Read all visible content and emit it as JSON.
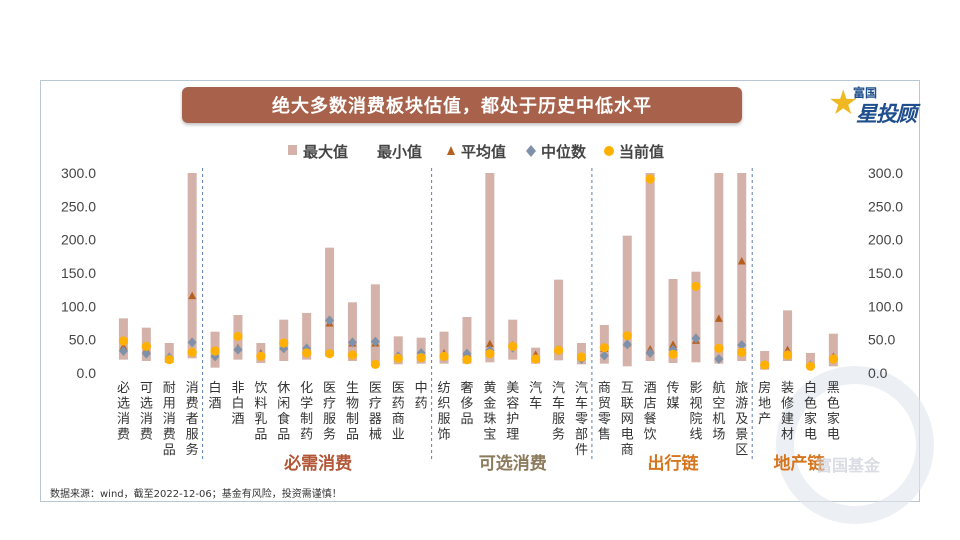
{
  "title": "绝大多数消费板块估值，都处于历史中低水平",
  "logo": {
    "top": "富国",
    "main": "星投顾"
  },
  "footnote": "数据来源：wind，截至2022-12-06；基金有风险，投资需谨慎！",
  "watermark": "富国基金",
  "colors": {
    "max_bar": "#d4b2aa",
    "avg": "#b5601e",
    "median": "#7f91a8",
    "current": "#ffb000",
    "title_bg": "#a8624b",
    "group_necessity": "#b25637",
    "group_optional": "#8c7a5c",
    "group_travel": "#d5761e",
    "group_property": "#d5761e",
    "divider": "#5b7fb5"
  },
  "chart_data": {
    "type": "bar",
    "ylim": [
      0,
      300
    ],
    "yticks": [
      "0.0",
      "50.0",
      "100.0",
      "150.0",
      "200.0",
      "250.0",
      "300.0"
    ],
    "legend": [
      "最大值",
      "最小值",
      "平均值",
      "中位数",
      "当前值"
    ],
    "legend_position": "top-center",
    "categories": [
      "必选消费",
      "可选消费",
      "耐用消费品",
      "消费者服务",
      "白酒",
      "非白酒",
      "饮料乳品",
      "休闲食品",
      "化学制药",
      "医疗服务",
      "生物制品",
      "医疗器械",
      "医药商业",
      "中药",
      "纺织服饰",
      "奢侈品",
      "黄金珠宝",
      "美容护理",
      "汽车",
      "汽车服务",
      "汽车零部件",
      "商贸零售",
      "互联网电商",
      "酒店餐饮",
      "传媒",
      "影视院线",
      "航空机场",
      "旅游及景区",
      "房地产",
      "装修建材",
      "白色家电",
      "黑色家电"
    ],
    "series": [
      {
        "name": "最大值",
        "values": [
          82,
          68,
          45,
          300,
          62,
          87,
          45,
          80,
          90,
          188,
          106,
          133,
          55,
          53,
          62,
          84,
          300,
          80,
          38,
          140,
          45,
          72,
          206,
          300,
          141,
          152,
          300,
          300,
          33,
          94,
          30,
          59
        ]
      },
      {
        "name": "最小值",
        "values": [
          20,
          18,
          15,
          22,
          8,
          20,
          15,
          18,
          20,
          25,
          18,
          16,
          13,
          14,
          14,
          14,
          16,
          20,
          14,
          19,
          13,
          14,
          10,
          18,
          15,
          16,
          14,
          18,
          5,
          18,
          8,
          10
        ]
      },
      {
        "name": "平均值",
        "values": [
          40,
          35,
          25,
          116,
          30,
          38,
          30,
          40,
          38,
          75,
          45,
          45,
          25,
          28,
          30,
          30,
          44,
          42,
          28,
          36,
          25,
          37,
          45,
          36,
          43,
          49,
          82,
          168,
          12,
          35,
          13,
          25
        ]
      },
      {
        "name": "中位数",
        "values": [
          33,
          29,
          23,
          46,
          25,
          35,
          26,
          37,
          37,
          79,
          46,
          47,
          25,
          30,
          25,
          29,
          34,
          38,
          21,
          34,
          21,
          26,
          43,
          30,
          35,
          52,
          21,
          42,
          12,
          28,
          11,
          21
        ]
      },
      {
        "name": "当前值",
        "values": [
          48,
          40,
          20,
          31,
          33,
          55,
          25,
          45,
          30,
          29,
          27,
          13,
          22,
          23,
          25,
          20,
          29,
          40,
          21,
          34,
          24,
          38,
          56,
          291,
          28,
          130,
          37,
          31,
          12,
          27,
          10,
          21
        ]
      }
    ],
    "groups": [
      {
        "label": "必需消费",
        "from": 4,
        "to": 13
      },
      {
        "label": "可选消费",
        "from": 14,
        "to": 20
      },
      {
        "label": "出行链",
        "from": 21,
        "to": 27
      },
      {
        "label": "地产链",
        "from": 28,
        "to": 31
      }
    ]
  }
}
